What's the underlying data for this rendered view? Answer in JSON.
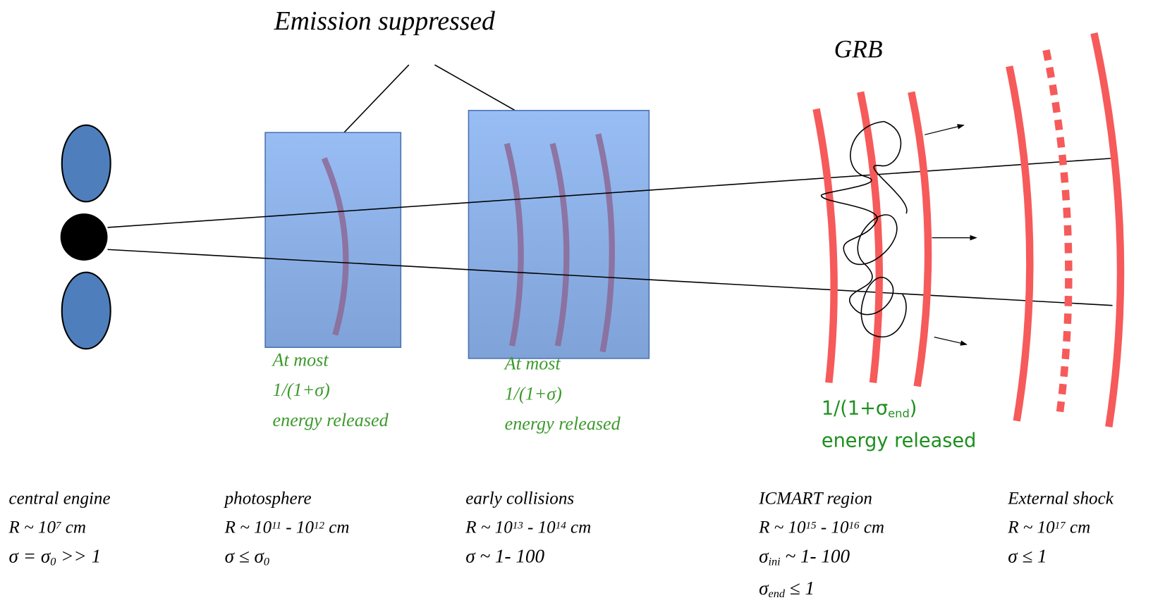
{
  "title": "Emission suppressed",
  "grb_label": "GRB",
  "energy_notes": [
    {
      "lines": [
        [
          "At most"
        ],
        [
          "1/(1+σ)"
        ],
        [
          "energy released"
        ]
      ]
    },
    {
      "lines": [
        [
          "At most"
        ],
        [
          "1/(1+σ)"
        ],
        [
          "energy released"
        ]
      ]
    },
    {
      "lines": [
        [
          "1/(1+σ",
          "end",
          ")"
        ],
        [
          "energy released"
        ]
      ]
    }
  ],
  "regions": [
    {
      "name": "central engine",
      "radius": [
        "R ~ 10",
        "7",
        " cm"
      ],
      "sigma": [
        [
          "σ = σ",
          "0",
          " >> 1"
        ]
      ]
    },
    {
      "name": "photosphere",
      "radius": [
        "R ~ 10",
        "11",
        " - 10",
        "12",
        " cm"
      ],
      "sigma": [
        [
          "σ ≤ σ",
          "0"
        ]
      ]
    },
    {
      "name": "early collisions",
      "radius": [
        "R ~ 10",
        "13",
        " - 10",
        "14",
        " cm"
      ],
      "sigma": [
        [
          "σ ~ 1- 100"
        ]
      ]
    },
    {
      "name": "ICMART region",
      "radius": [
        "R ~ 10",
        "15",
        " - 10",
        "16",
        " cm"
      ],
      "sigma": [
        [
          "σ",
          "ini",
          " ~ 1- 100"
        ],
        [
          "σ",
          "end",
          " ≤ 1"
        ]
      ]
    },
    {
      "name": "External shock",
      "radius": [
        "R ~ 10",
        "17",
        " cm"
      ],
      "sigma": [
        [
          "σ ≤ 1"
        ]
      ]
    }
  ]
}
